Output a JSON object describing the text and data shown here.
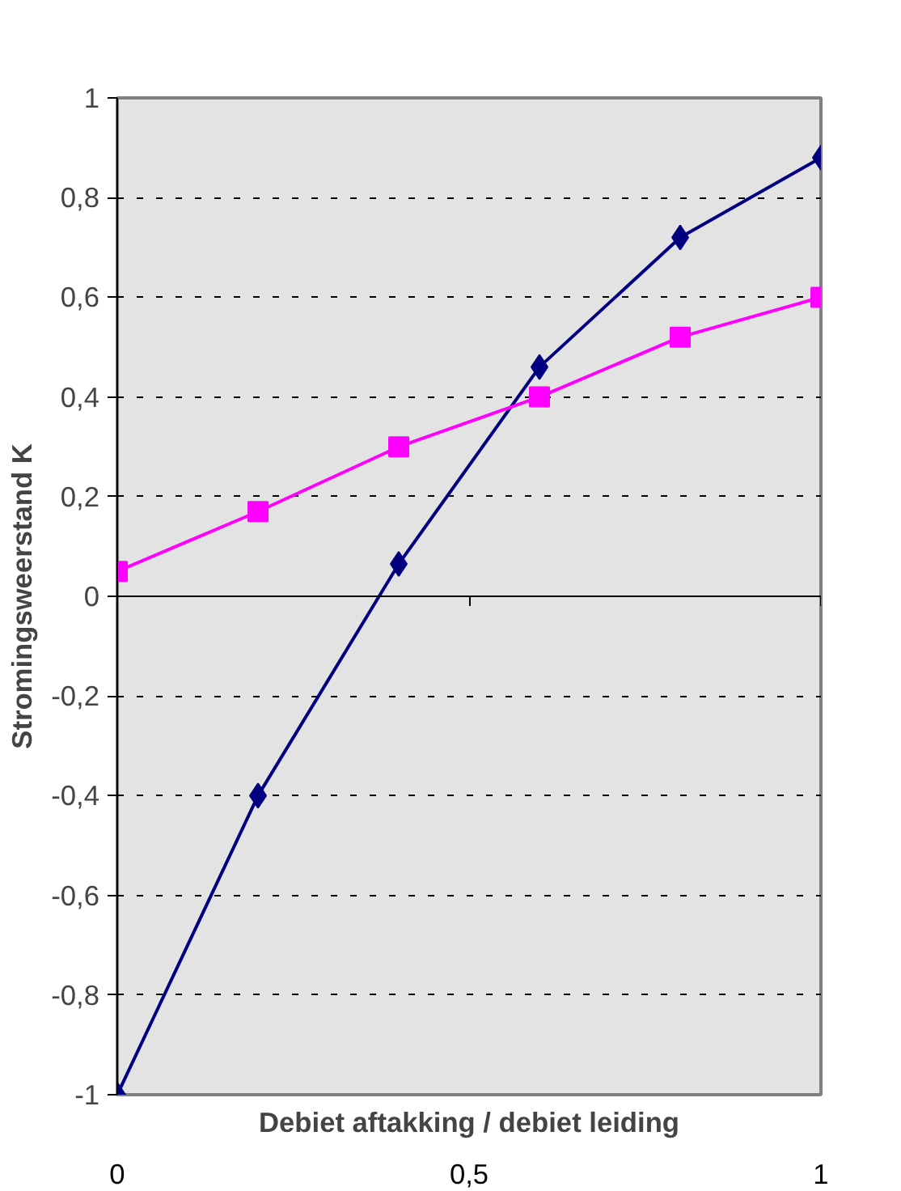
{
  "chart_data": {
    "type": "line",
    "xlabel": "Debiet aftakking / debiet leiding",
    "ylabel": "Stromingsweerstand K",
    "x": [
      0,
      0.2,
      0.4,
      0.6,
      0.8,
      1
    ],
    "series": [
      {
        "color": "#000080",
        "marker": "diamond",
        "values": [
          -1,
          -0.4,
          0.065,
          0.46,
          0.72,
          0.88
        ]
      },
      {
        "color": "#ff00ff",
        "marker": "square",
        "values": [
          0.05,
          0.17,
          0.3,
          0.4,
          0.52,
          0.6
        ]
      }
    ],
    "xlim": [
      0,
      1
    ],
    "xticks": [
      0,
      {
        "value": 0.5,
        "label": "0,5"
      },
      1
    ],
    "ylim": [
      -1,
      1
    ],
    "yticks": [
      {
        "value": -1,
        "label": "-1"
      },
      {
        "value": -0.8,
        "label": "-0,8"
      },
      {
        "value": -0.6,
        "label": "-0,6"
      },
      {
        "value": -0.4,
        "label": "-0,4"
      },
      {
        "value": -0.2,
        "label": "-0,2"
      },
      0,
      {
        "value": 0.2,
        "label": "0,2"
      },
      {
        "value": 0.4,
        "label": "0,4"
      },
      {
        "value": 0.6,
        "label": "0,6"
      },
      {
        "value": 0.8,
        "label": "0,8"
      },
      1
    ],
    "grid": "y",
    "line_style": "solid"
  }
}
